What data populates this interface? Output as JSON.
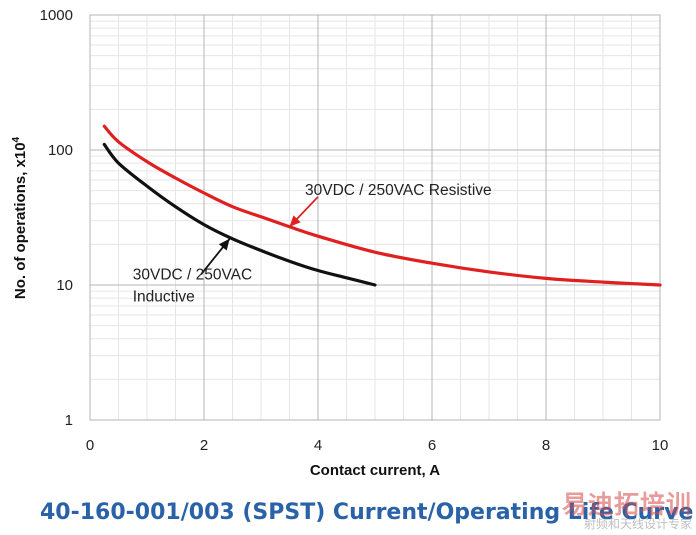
{
  "chart_data": {
    "type": "line",
    "title": "40-160-001/003 (SPST) Current/Operating Life Curve",
    "xlabel": "Contact current, A",
    "ylabel": "No. of operations, x10",
    "ylabel_exponent": "4",
    "x_scale": "linear",
    "y_scale": "log",
    "xlim": [
      0,
      10
    ],
    "ylim": [
      1,
      1000
    ],
    "xticks": [
      0,
      2,
      4,
      6,
      8,
      10
    ],
    "yticks": [
      1,
      10,
      100,
      1000
    ],
    "xtick_labels": [
      "0",
      "2",
      "4",
      "6",
      "8",
      "10"
    ],
    "ytick_labels": [
      "1",
      "10",
      "100",
      "1000"
    ],
    "grid": true,
    "series": [
      {
        "name": "30VDC / 250VAC Resistive",
        "color": "#e02020",
        "x": [
          0.25,
          0.5,
          1.0,
          1.5,
          2.0,
          2.5,
          3.0,
          3.5,
          4.0,
          5.0,
          6.0,
          7.0,
          8.0,
          9.0,
          10.0
        ],
        "y": [
          150,
          115,
          82,
          62,
          48,
          38,
          32,
          27,
          23,
          17.5,
          14.5,
          12.5,
          11.2,
          10.5,
          10
        ]
      },
      {
        "name": "30VDC / 250VAC Inductive",
        "color": "#111111",
        "x": [
          0.25,
          0.5,
          1.0,
          1.5,
          2.0,
          2.5,
          3.0,
          3.5,
          4.0,
          4.5,
          5.0
        ],
        "y": [
          110,
          80,
          54,
          38,
          28,
          22,
          18,
          15,
          12.8,
          11.3,
          10
        ]
      }
    ],
    "annotations": [
      {
        "series": 0,
        "lines": [
          "30VDC / 250VAC Resistive"
        ],
        "arrow_to": [
          3.5,
          27
        ],
        "arrow_from": [
          4.0,
          45
        ]
      },
      {
        "series": 1,
        "lines": [
          "30VDC / 250VAC",
          "Inductive"
        ],
        "arrow_to": [
          2.45,
          22
        ],
        "arrow_from": [
          1.95,
          12
        ]
      }
    ]
  },
  "watermark": {
    "main": "易迪拓培训",
    "sub": "射频和天线设计专家"
  }
}
